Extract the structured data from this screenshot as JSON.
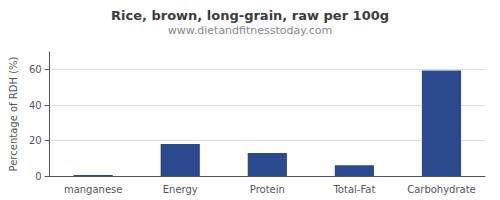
{
  "chart_data": {
    "type": "bar",
    "title": "Rice, brown, long-grain, raw per 100g",
    "subtitle": "www.dietandfitnesstoday.com",
    "ylabel": "Percentage of RDH (%)",
    "categories": [
      "manganese",
      "Energy",
      "Protein",
      "Total-Fat",
      "Carbohydrate"
    ],
    "values": [
      0.5,
      18,
      13,
      6,
      59.5
    ],
    "color": "#2b4a8e",
    "ylim": [
      0,
      70
    ],
    "yticks": [
      0,
      20,
      40,
      60
    ],
    "grid": true
  }
}
